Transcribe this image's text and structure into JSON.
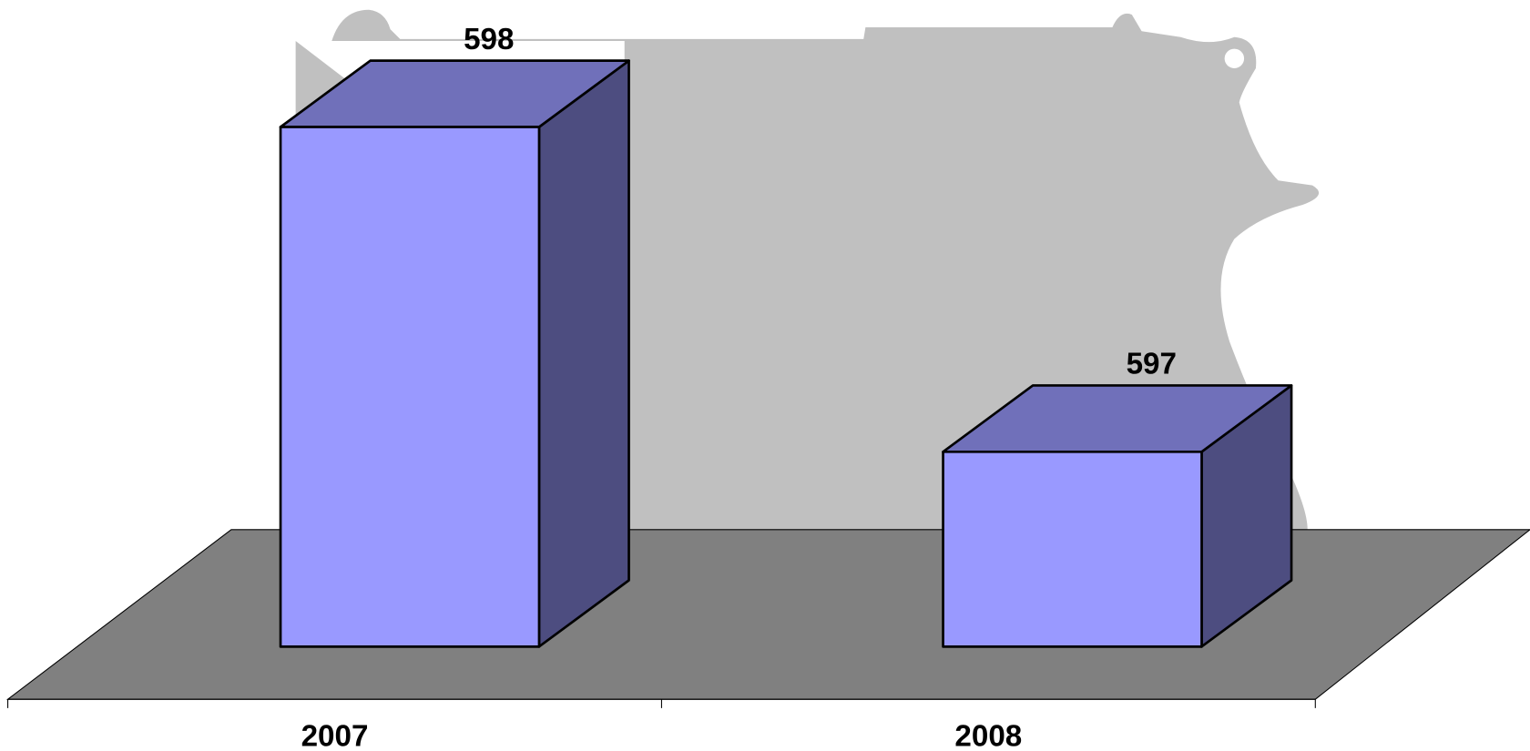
{
  "chart_data": {
    "type": "bar3d",
    "categories": [
      "2007",
      "2008"
    ],
    "values": [
      598,
      597
    ],
    "color": "#9999ff",
    "ylim": [
      596.4,
      598.2
    ]
  }
}
